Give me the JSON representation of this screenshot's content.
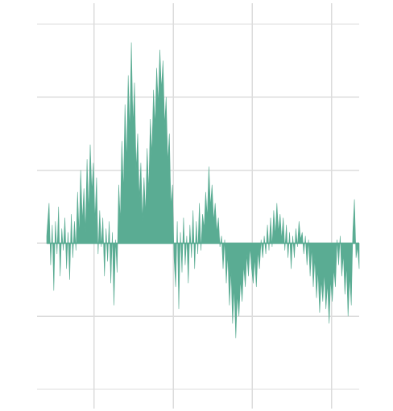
{
  "chart_data": {
    "type": "area",
    "title": "",
    "xlabel": "",
    "ylabel": "",
    "xlim": [
      0,
      395
    ],
    "ylim": [
      -2,
      3
    ],
    "grid": true,
    "legend": "none",
    "baseline": 0,
    "x_grid": [
      60,
      160,
      260,
      360
    ],
    "y_grid": [
      -2,
      -1,
      0,
      1,
      2,
      3
    ],
    "series": [
      {
        "fill_color": "#5aac93",
        "envelope": [
          [
            0,
            0.1
          ],
          [
            3,
            0.55
          ],
          [
            5,
            -0.3
          ],
          [
            7,
            0.25
          ],
          [
            9,
            -0.65
          ],
          [
            11,
            0.3
          ],
          [
            13,
            -0.15
          ],
          [
            15,
            0.5
          ],
          [
            17,
            -0.45
          ],
          [
            19,
            0.2
          ],
          [
            21,
            -0.1
          ],
          [
            23,
            0.35
          ],
          [
            25,
            -0.35
          ],
          [
            27,
            0.15
          ],
          [
            29,
            -0.5
          ],
          [
            31,
            0.4
          ],
          [
            33,
            -0.2
          ],
          [
            35,
            0.3
          ],
          [
            37,
            -0.1
          ],
          [
            39,
            0.7
          ],
          [
            41,
            0.1
          ],
          [
            43,
            1.0
          ],
          [
            45,
            0.3
          ],
          [
            47,
            0.75
          ],
          [
            49,
            0.15
          ],
          [
            51,
            1.15
          ],
          [
            53,
            0.4
          ],
          [
            55,
            1.35
          ],
          [
            57,
            0.7
          ],
          [
            59,
            1.1
          ],
          [
            61,
            0.3
          ],
          [
            63,
            0.9
          ],
          [
            65,
            -0.15
          ],
          [
            67,
            0.45
          ],
          [
            69,
            -0.05
          ],
          [
            71,
            0.35
          ],
          [
            73,
            -0.45
          ],
          [
            75,
            0.2
          ],
          [
            77,
            -0.25
          ],
          [
            79,
            0.3
          ],
          [
            81,
            -0.55
          ],
          [
            83,
            0.15
          ],
          [
            85,
            -0.85
          ],
          [
            87,
            0.05
          ],
          [
            89,
            -0.4
          ],
          [
            91,
            0.8
          ],
          [
            93,
            0.3
          ],
          [
            95,
            1.4
          ],
          [
            97,
            0.7
          ],
          [
            99,
            1.9
          ],
          [
            101,
            1.1
          ],
          [
            103,
            2.3
          ],
          [
            105,
            1.5
          ],
          [
            107,
            2.75
          ],
          [
            109,
            1.6
          ],
          [
            111,
            2.2
          ],
          [
            113,
            1.0
          ],
          [
            115,
            1.5
          ],
          [
            117,
            0.6
          ],
          [
            119,
            1.1
          ],
          [
            121,
            0.3
          ],
          [
            123,
            0.9
          ],
          [
            125,
            0.4
          ],
          [
            127,
            1.3
          ],
          [
            129,
            0.7
          ],
          [
            131,
            1.7
          ],
          [
            133,
            1.2
          ],
          [
            135,
            2.1
          ],
          [
            137,
            1.6
          ],
          [
            139,
            2.4
          ],
          [
            141,
            1.9
          ],
          [
            143,
            2.65
          ],
          [
            145,
            2.1
          ],
          [
            147,
            2.5
          ],
          [
            149,
            1.6
          ],
          [
            151,
            2.0
          ],
          [
            153,
            1.1
          ],
          [
            155,
            1.5
          ],
          [
            157,
            0.5
          ],
          [
            159,
            0.8
          ],
          [
            161,
            -0.2
          ],
          [
            163,
            -0.6
          ],
          [
            165,
            0.3
          ],
          [
            167,
            -0.9
          ],
          [
            169,
            0.15
          ],
          [
            171,
            -0.4
          ],
          [
            173,
            0.35
          ],
          [
            175,
            -0.3
          ],
          [
            177,
            0.1
          ],
          [
            179,
            -0.55
          ],
          [
            181,
            0.25
          ],
          [
            183,
            -0.2
          ],
          [
            185,
            0.45
          ],
          [
            187,
            -0.35
          ],
          [
            189,
            0.3
          ],
          [
            191,
            -0.15
          ],
          [
            193,
            0.55
          ],
          [
            195,
            -0.1
          ],
          [
            197,
            0.4
          ],
          [
            199,
            0.2
          ],
          [
            201,
            0.7
          ],
          [
            203,
            0.35
          ],
          [
            205,
            1.05
          ],
          [
            207,
            0.5
          ],
          [
            209,
            0.8
          ],
          [
            211,
            0.3
          ],
          [
            213,
            0.55
          ],
          [
            215,
            0.15
          ],
          [
            217,
            0.35
          ],
          [
            219,
            -0.05
          ],
          [
            221,
            0.1
          ],
          [
            223,
            -0.35
          ],
          [
            225,
            0.05
          ],
          [
            227,
            -0.55
          ],
          [
            229,
            -0.15
          ],
          [
            231,
            -0.85
          ],
          [
            233,
            -0.35
          ],
          [
            235,
            -1.1
          ],
          [
            237,
            -0.6
          ],
          [
            239,
            -1.3
          ],
          [
            241,
            -0.7
          ],
          [
            243,
            -1.0
          ],
          [
            245,
            -0.5
          ],
          [
            247,
            -0.8
          ],
          [
            249,
            -0.3
          ],
          [
            251,
            -0.6
          ],
          [
            253,
            -0.15
          ],
          [
            255,
            -0.45
          ],
          [
            257,
            -0.05
          ],
          [
            259,
            -0.35
          ],
          [
            261,
            -0.55
          ],
          [
            263,
            -0.2
          ],
          [
            265,
            -0.6
          ],
          [
            267,
            -0.1
          ],
          [
            269,
            -0.35
          ],
          [
            271,
            0.05
          ],
          [
            273,
            -0.2
          ],
          [
            275,
            0.1
          ],
          [
            277,
            -0.15
          ],
          [
            279,
            0.25
          ],
          [
            281,
            -0.1
          ],
          [
            283,
            0.35
          ],
          [
            285,
            -0.05
          ],
          [
            287,
            0.45
          ],
          [
            289,
            0.1
          ],
          [
            291,
            0.55
          ],
          [
            293,
            0.15
          ],
          [
            295,
            0.4
          ],
          [
            297,
            0.05
          ],
          [
            299,
            0.35
          ],
          [
            301,
            -0.1
          ],
          [
            303,
            0.25
          ],
          [
            305,
            -0.2
          ],
          [
            307,
            0.15
          ],
          [
            309,
            -0.35
          ],
          [
            311,
            0.1
          ],
          [
            313,
            -0.2
          ],
          [
            315,
            0.2
          ],
          [
            317,
            -0.05
          ],
          [
            319,
            0.3
          ],
          [
            321,
            0.05
          ],
          [
            323,
            0.15
          ],
          [
            325,
            -0.15
          ],
          [
            327,
            0.1
          ],
          [
            329,
            -0.3
          ],
          [
            331,
            0.05
          ],
          [
            333,
            -0.45
          ],
          [
            335,
            -0.05
          ],
          [
            337,
            -0.6
          ],
          [
            339,
            -0.2
          ],
          [
            341,
            -0.75
          ],
          [
            343,
            -0.35
          ],
          [
            345,
            -0.95
          ],
          [
            347,
            -0.5
          ],
          [
            349,
            -0.8
          ],
          [
            351,
            -0.4
          ],
          [
            353,
            -0.9
          ],
          [
            355,
            -0.55
          ],
          [
            357,
            -1.1
          ],
          [
            359,
            -0.5
          ],
          [
            361,
            -0.8
          ],
          [
            363,
            -0.35
          ],
          [
            365,
            -0.6
          ],
          [
            367,
            0.05
          ],
          [
            369,
            -0.3
          ],
          [
            371,
            0.1
          ],
          [
            373,
            -0.45
          ],
          [
            375,
            -0.15
          ],
          [
            377,
            -0.7
          ],
          [
            379,
            -0.3
          ],
          [
            381,
            -1.0
          ],
          [
            383,
            -0.45
          ],
          [
            385,
            -0.85
          ],
          [
            387,
            0.15
          ],
          [
            389,
            0.6
          ],
          [
            391,
            -0.2
          ],
          [
            393,
            -0.05
          ],
          [
            395,
            -0.35
          ]
        ]
      }
    ]
  }
}
